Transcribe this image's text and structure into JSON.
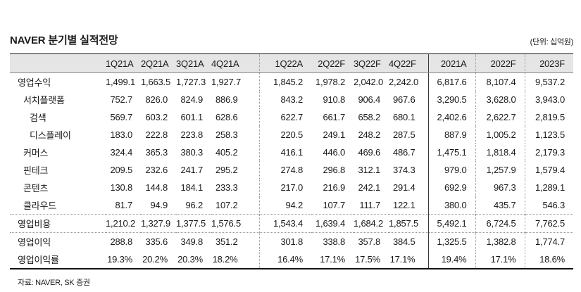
{
  "title": "NAVER 분기별 실적전망",
  "unit_label": "(단위: 십억원)",
  "source": "자료: NAVER, SK 증권",
  "colors": {
    "header_bg": "#e5e5e5",
    "table_top_line": "#1a1a1a",
    "table_bottom_line": "#111111",
    "divider_dotted": "#999999",
    "divider_solid": "#3a3a3a"
  },
  "table": {
    "columns": [
      "1Q21A",
      "2Q21A",
      "3Q21A",
      "4Q21A",
      "1Q22A",
      "2Q22F",
      "3Q22F",
      "4Q22F",
      "2021A",
      "2022F",
      "2023F"
    ],
    "rows": [
      {
        "label": "영업수익",
        "indent": 0,
        "divider_top": false,
        "values": [
          "1,499.1",
          "1,663.5",
          "1,727.3",
          "1,927.7",
          "1,845.2",
          "1,978.2",
          "2,042.0",
          "2,242.0",
          "6,817.6",
          "8,107.4",
          "9,537.2"
        ]
      },
      {
        "label": "서치플랫폼",
        "indent": 1,
        "divider_top": false,
        "values": [
          "752.7",
          "826.0",
          "824.9",
          "886.9",
          "843.2",
          "910.8",
          "906.4",
          "967.6",
          "3,290.5",
          "3,628.0",
          "3,943.0"
        ]
      },
      {
        "label": "검색",
        "indent": 2,
        "divider_top": false,
        "values": [
          "569.7",
          "603.2",
          "601.1",
          "628.6",
          "622.7",
          "661.7",
          "658.2",
          "680.1",
          "2,402.6",
          "2,622.7",
          "2,819.5"
        ]
      },
      {
        "label": "디스플레이",
        "indent": 2,
        "divider_top": false,
        "values": [
          "183.0",
          "222.8",
          "223.8",
          "258.3",
          "220.5",
          "249.1",
          "248.2",
          "287.5",
          "887.9",
          "1,005.2",
          "1,123.5"
        ]
      },
      {
        "label": "커머스",
        "indent": 1,
        "divider_top": false,
        "values": [
          "324.4",
          "365.3",
          "380.3",
          "405.2",
          "416.1",
          "446.0",
          "469.6",
          "486.7",
          "1,475.1",
          "1,818.4",
          "2,179.3"
        ]
      },
      {
        "label": "핀테크",
        "indent": 1,
        "divider_top": false,
        "values": [
          "209.5",
          "232.6",
          "241.7",
          "295.2",
          "274.8",
          "296.8",
          "312.1",
          "374.3",
          "979.0",
          "1,257.9",
          "1,579.4"
        ]
      },
      {
        "label": "콘텐츠",
        "indent": 1,
        "divider_top": false,
        "values": [
          "130.8",
          "144.8",
          "184.1",
          "233.3",
          "217.0",
          "216.9",
          "242.1",
          "291.4",
          "692.9",
          "967.3",
          "1,289.1"
        ]
      },
      {
        "label": "클라우드",
        "indent": 1,
        "divider_top": false,
        "values": [
          "81.7",
          "94.9",
          "96.2",
          "107.2",
          "94.2",
          "107.7",
          "111.7",
          "122.1",
          "380.0",
          "435.7",
          "546.3"
        ]
      },
      {
        "label": "영업비용",
        "indent": 0,
        "divider_top": true,
        "values": [
          "1,210.2",
          "1,327.9",
          "1,377.5",
          "1,576.5",
          "1,543.4",
          "1,639.4",
          "1,684.2",
          "1,857.5",
          "5,492.1",
          "6,724.5",
          "7,762.5"
        ]
      },
      {
        "label": "영업이익",
        "indent": 0,
        "divider_top": true,
        "values": [
          "288.8",
          "335.6",
          "349.8",
          "351.2",
          "301.8",
          "338.8",
          "357.8",
          "384.5",
          "1,325.5",
          "1,382.8",
          "1,774.7"
        ]
      },
      {
        "label": "영업이익률",
        "indent": 0,
        "divider_top": false,
        "values": [
          "19.3%",
          "20.2%",
          "20.3%",
          "18.2%",
          "16.4%",
          "17.1%",
          "17.5%",
          "17.1%",
          "19.4%",
          "17.1%",
          "18.6%"
        ]
      }
    ]
  }
}
